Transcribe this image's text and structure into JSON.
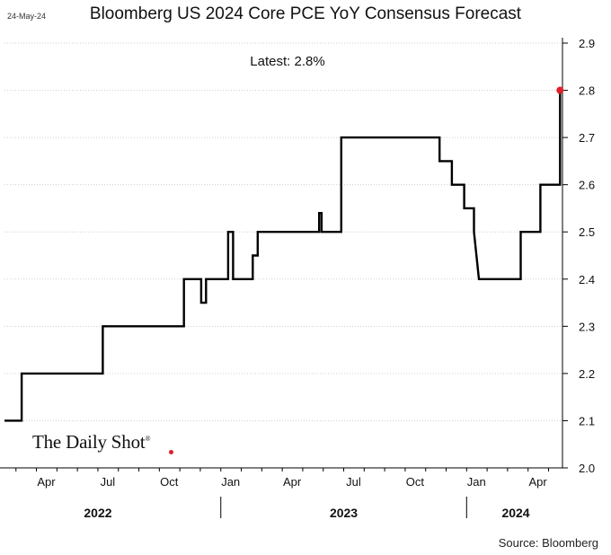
{
  "header": {
    "date_stamp": "24-May-24",
    "title": "Bloomberg US 2024 Core PCE YoY Consensus Forecast",
    "latest_label": "Latest:  2.8%"
  },
  "footer": {
    "source": "Source: Bloomberg",
    "logo_text": "The Daily Shot"
  },
  "colors": {
    "line": "#000000",
    "latest_marker": "#e0202a",
    "gridline": "#cfcfcf"
  },
  "chart_data": {
    "type": "line",
    "title": "Bloomberg US 2024 Core PCE YoY Consensus Forecast",
    "xlabel": "",
    "ylabel": "",
    "ylim": [
      2.0,
      2.9
    ],
    "y_ticks": [
      2.0,
      2.1,
      2.2,
      2.3,
      2.4,
      2.5,
      2.6,
      2.7,
      2.8,
      2.9
    ],
    "x_range": [
      2022.12,
      2024.39
    ],
    "x_tick_labels": [
      {
        "label": "Apr",
        "x": 2022.29
      },
      {
        "label": "Jul",
        "x": 2022.54
      },
      {
        "label": "Oct",
        "x": 2022.79
      },
      {
        "label": "Jan",
        "x": 2023.04
      },
      {
        "label": "Apr",
        "x": 2023.29
      },
      {
        "label": "Jul",
        "x": 2023.54
      },
      {
        "label": "Oct",
        "x": 2023.79
      },
      {
        "label": "Jan",
        "x": 2024.04
      },
      {
        "label": "Apr",
        "x": 2024.29
      }
    ],
    "year_labels": [
      {
        "label": "2022",
        "x": 2022.5
      },
      {
        "label": "2023",
        "x": 2023.5
      },
      {
        "label": "2024",
        "x": 2024.2
      }
    ],
    "year_separators": [
      2023.0,
      2024.0
    ],
    "series": [
      {
        "name": "Core PCE YoY 2024 consensus",
        "x": [
          2022.12,
          2022.19,
          2022.19,
          2022.52,
          2022.52,
          2022.85,
          2022.85,
          2022.92,
          2022.92,
          2022.94,
          2022.94,
          2023.03,
          2023.03,
          2023.05,
          2023.05,
          2023.13,
          2023.13,
          2023.15,
          2023.15,
          2023.4,
          2023.4,
          2023.41,
          2023.41,
          2023.49,
          2023.49,
          2023.89,
          2023.89,
          2023.94,
          2023.94,
          2023.99,
          2023.99,
          2024.03,
          2024.03,
          2024.05,
          2024.06,
          2024.22,
          2024.22,
          2024.3,
          2024.3,
          2024.38,
          2024.38
        ],
        "values": [
          2.1,
          2.1,
          2.2,
          2.2,
          2.3,
          2.3,
          2.4,
          2.4,
          2.35,
          2.35,
          2.4,
          2.4,
          2.5,
          2.5,
          2.4,
          2.4,
          2.45,
          2.45,
          2.5,
          2.5,
          2.54,
          2.54,
          2.5,
          2.5,
          2.7,
          2.7,
          2.65,
          2.65,
          2.6,
          2.6,
          2.55,
          2.55,
          2.5,
          2.4,
          2.4,
          2.4,
          2.5,
          2.5,
          2.6,
          2.6,
          2.8
        ]
      }
    ],
    "latest_point": {
      "x": 2024.38,
      "value": 2.8
    },
    "grid": true,
    "y_axis_side": "right"
  }
}
